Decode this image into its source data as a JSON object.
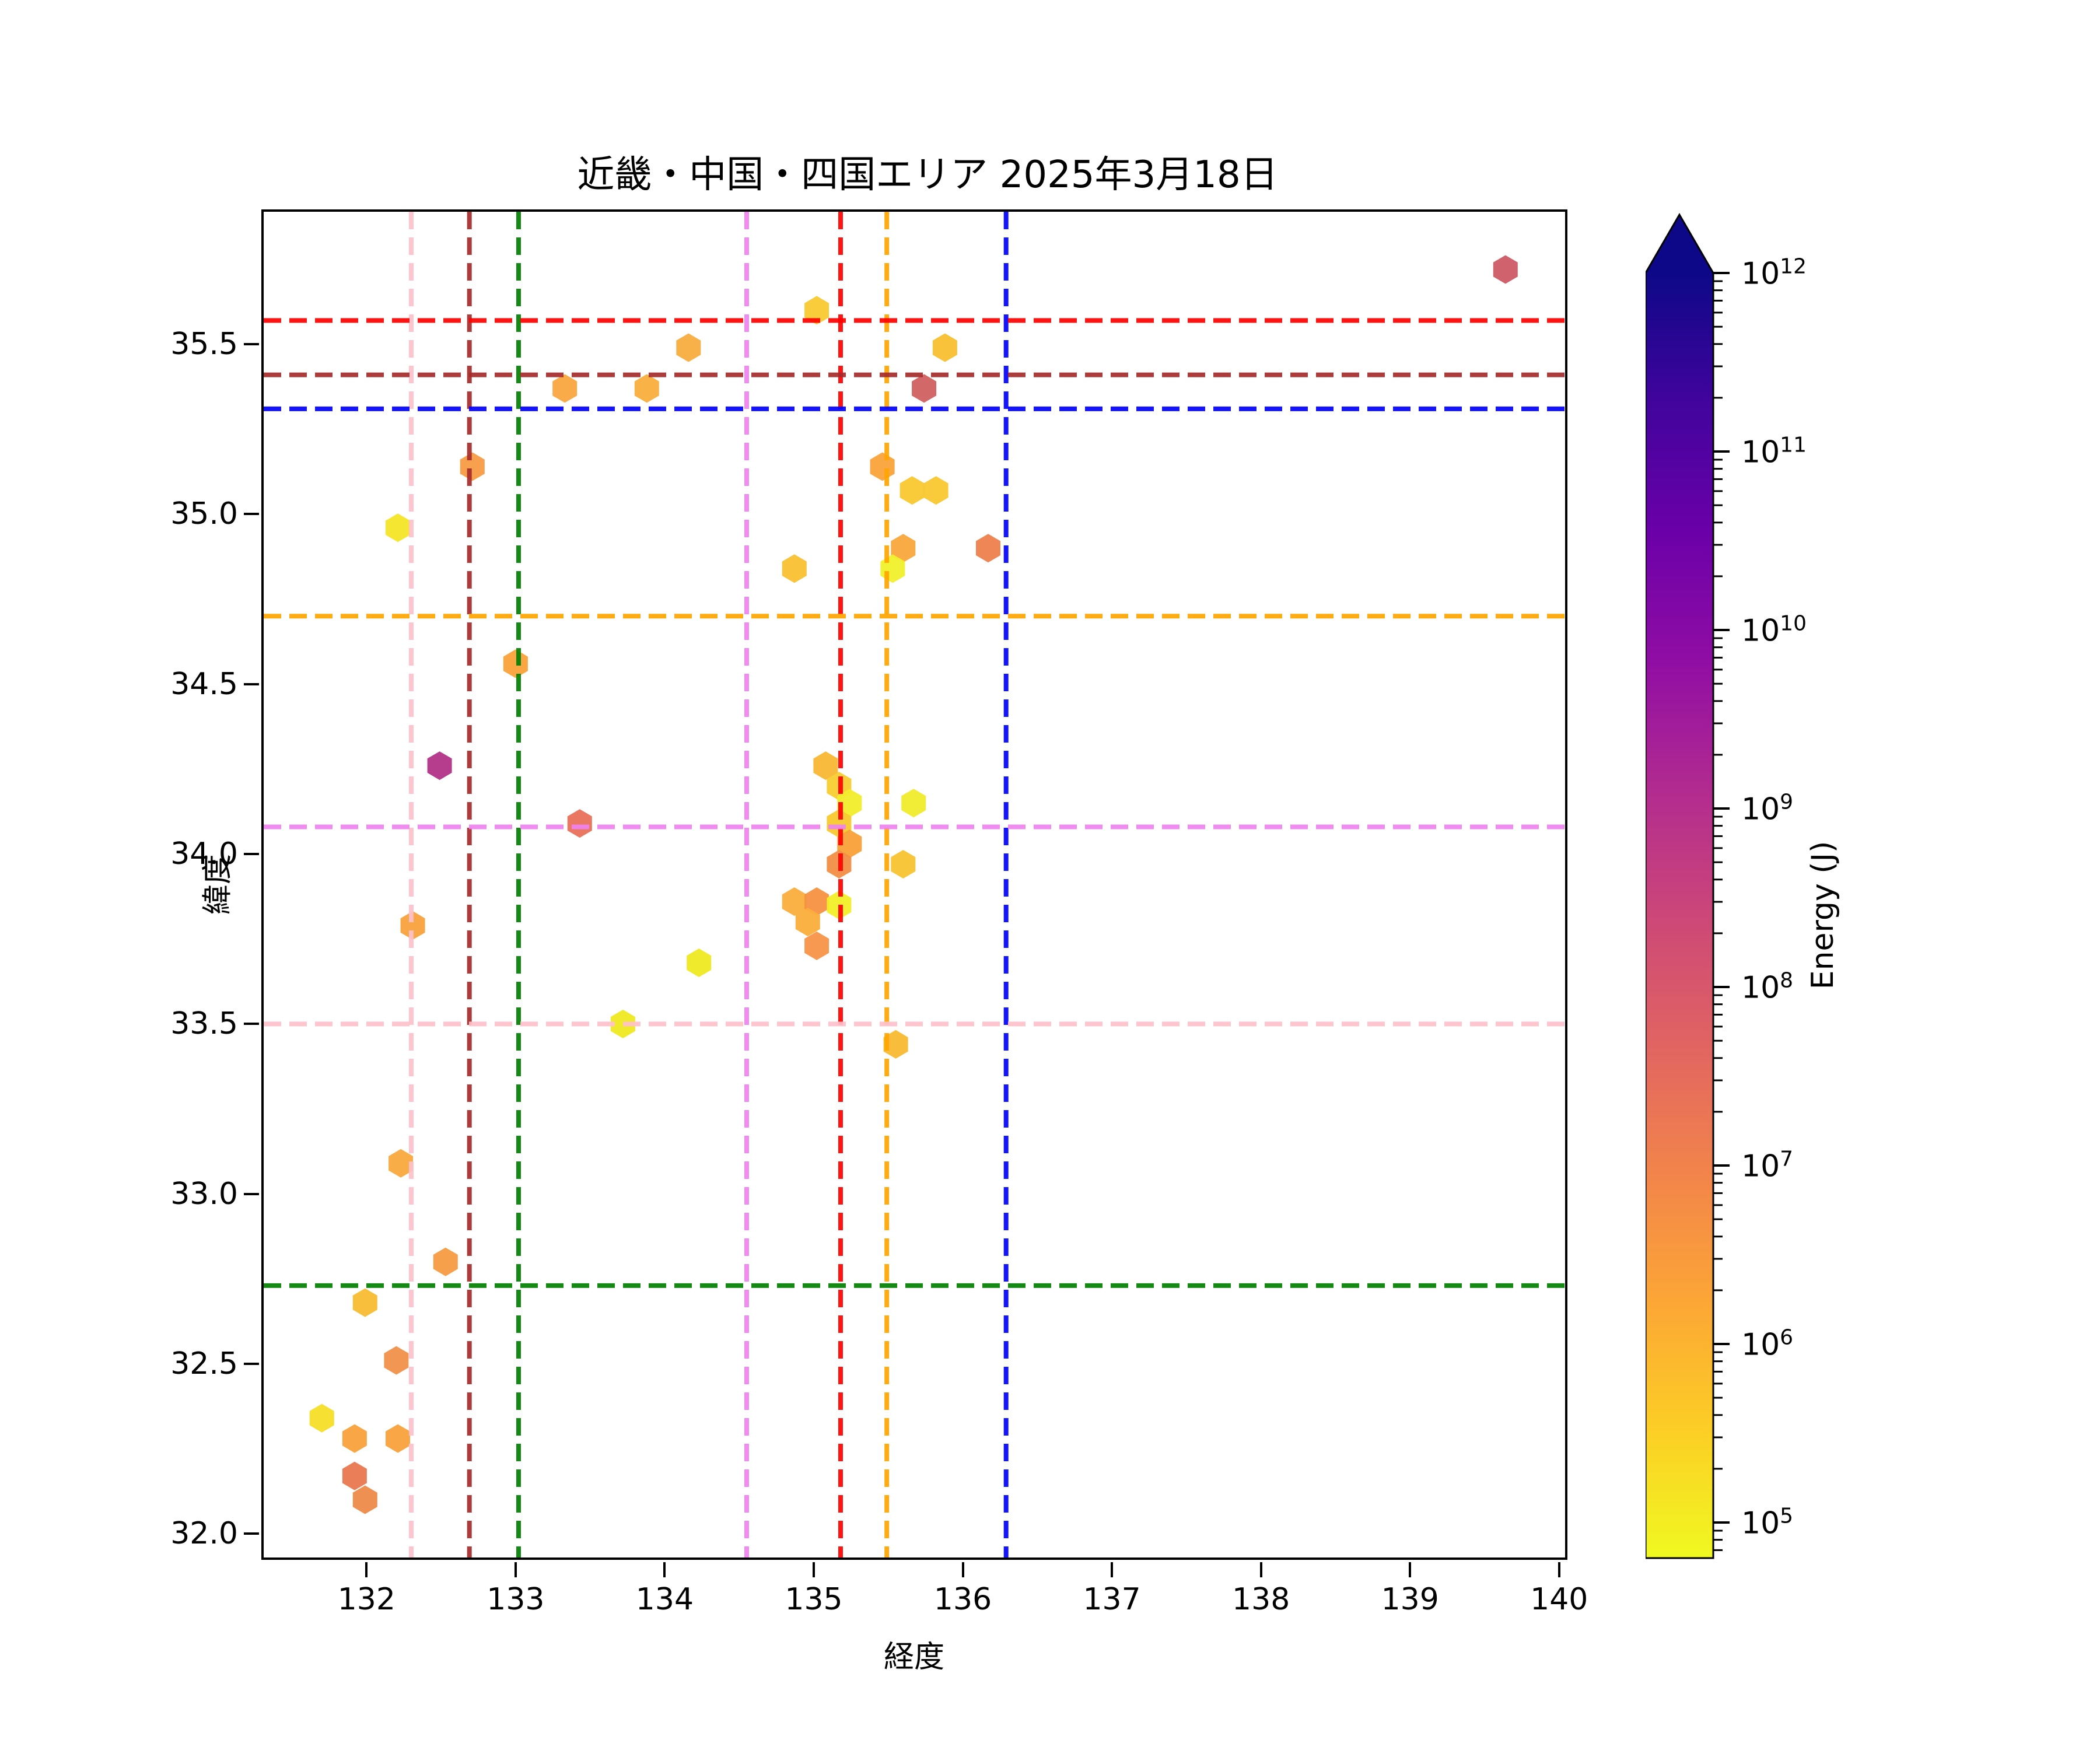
{
  "title": "近畿・中国・四国エリア 2025年3月18日",
  "chart_data": {
    "type": "scatter",
    "marker": "hexagon",
    "title": "近畿・中国・四国エリア 2025年3月18日",
    "xlabel": "経度",
    "ylabel": "緯度",
    "xlim": [
      131.31,
      140.04
    ],
    "ylim": [
      31.93,
      35.89
    ],
    "x_ticks": [
      "132",
      "133",
      "134",
      "135",
      "136",
      "137",
      "138",
      "139",
      "140"
    ],
    "y_ticks": [
      "32.0",
      "32.5",
      "33.0",
      "33.5",
      "34.0",
      "34.5",
      "35.0",
      "35.5"
    ],
    "grid": false,
    "legend": "none",
    "colorbar": {
      "label": "Energy (J)",
      "scale": "log",
      "colormap": "plasma_r",
      "extend_max_arrow": true,
      "tick_base": "10",
      "tick_exponents": [
        12,
        11,
        10,
        9,
        8,
        7,
        6,
        5
      ],
      "vmin_approx": 63000.0,
      "vmax": 1000000000000.0,
      "gradient_stops": [
        "#0d0887",
        "#41049d",
        "#6a00a8",
        "#8f0da4",
        "#b12a90",
        "#cc4778",
        "#e16462",
        "#f2844b",
        "#fca636",
        "#fcce25",
        "#f0f921"
      ]
    },
    "reference_lines": {
      "style": "dashed",
      "vertical": [
        {
          "lon": 132.3,
          "color": "#ffc0cb"
        },
        {
          "lon": 132.69,
          "color": "#a52a2a"
        },
        {
          "lon": 133.02,
          "color": "#008000"
        },
        {
          "lon": 134.55,
          "color": "#ee82ee"
        },
        {
          "lon": 135.18,
          "color": "#ff0000"
        },
        {
          "lon": 135.49,
          "color": "#ffa500"
        },
        {
          "lon": 136.29,
          "color": "#0000ff"
        }
      ],
      "horizontal": [
        {
          "lat": 35.57,
          "color": "#ff0000"
        },
        {
          "lat": 35.41,
          "color": "#a52a2a"
        },
        {
          "lat": 35.31,
          "color": "#0000ff"
        },
        {
          "lat": 34.7,
          "color": "#ffa500"
        },
        {
          "lat": 34.08,
          "color": "#ee82ee"
        },
        {
          "lat": 33.5,
          "color": "#ffc0cb"
        },
        {
          "lat": 32.73,
          "color": "#008000"
        }
      ]
    },
    "points": [
      {
        "lon": 139.64,
        "lat": 35.72,
        "color": "#ce5a66",
        "energy_log10_approx": 8.0
      },
      {
        "lon": 135.02,
        "lat": 35.6,
        "color": "#f8c930",
        "energy_log10_approx": 5.6
      },
      {
        "lon": 134.16,
        "lat": 35.49,
        "color": "#f8ac3e",
        "energy_log10_approx": 6.1
      },
      {
        "lon": 135.88,
        "lat": 35.49,
        "color": "#f8c02f",
        "energy_log10_approx": 5.7
      },
      {
        "lon": 133.33,
        "lat": 35.37,
        "color": "#f8a63e",
        "energy_log10_approx": 6.2
      },
      {
        "lon": 133.88,
        "lat": 35.37,
        "color": "#f9ae3b",
        "energy_log10_approx": 6.1
      },
      {
        "lon": 135.74,
        "lat": 35.37,
        "color": "#d0605f",
        "energy_log10_approx": 7.8
      },
      {
        "lon": 132.71,
        "lat": 35.14,
        "color": "#f79b43",
        "energy_log10_approx": 6.4
      },
      {
        "lon": 135.46,
        "lat": 35.14,
        "color": "#f9a33a",
        "energy_log10_approx": 6.3
      },
      {
        "lon": 135.66,
        "lat": 35.07,
        "color": "#f9c72e",
        "energy_log10_approx": 5.6
      },
      {
        "lon": 135.82,
        "lat": 35.07,
        "color": "#f9c72e",
        "energy_log10_approx": 5.6
      },
      {
        "lon": 132.21,
        "lat": 34.96,
        "color": "#f4e626",
        "energy_log10_approx": 5.2
      },
      {
        "lon": 135.6,
        "lat": 34.9,
        "color": "#f9a63c",
        "energy_log10_approx": 6.2
      },
      {
        "lon": 136.17,
        "lat": 34.9,
        "color": "#ed7f4d",
        "energy_log10_approx": 7.0
      },
      {
        "lon": 134.87,
        "lat": 34.84,
        "color": "#f9c030",
        "energy_log10_approx": 5.7
      },
      {
        "lon": 135.53,
        "lat": 34.84,
        "color": "#f0f02a",
        "energy_log10_approx": 5.1
      },
      {
        "lon": 133.0,
        "lat": 34.56,
        "color": "#f9a139",
        "energy_log10_approx": 6.3
      },
      {
        "lon": 132.49,
        "lat": 34.26,
        "color": "#b23288",
        "energy_log10_approx": 9.0
      },
      {
        "lon": 135.08,
        "lat": 34.26,
        "color": "#f9b733",
        "energy_log10_approx": 5.8
      },
      {
        "lon": 135.17,
        "lat": 34.2,
        "color": "#f7ce30",
        "energy_log10_approx": 5.5
      },
      {
        "lon": 135.24,
        "lat": 34.15,
        "color": "#f1ed2b",
        "energy_log10_approx": 5.1
      },
      {
        "lon": 135.67,
        "lat": 34.15,
        "color": "#f0ec2c",
        "energy_log10_approx": 5.1
      },
      {
        "lon": 133.43,
        "lat": 34.09,
        "color": "#e9705a",
        "energy_log10_approx": 7.3
      },
      {
        "lon": 135.17,
        "lat": 34.09,
        "color": "#f8c92e",
        "energy_log10_approx": 5.6
      },
      {
        "lon": 135.24,
        "lat": 34.03,
        "color": "#f9a138",
        "energy_log10_approx": 6.3
      },
      {
        "lon": 135.17,
        "lat": 33.97,
        "color": "#f18d44",
        "energy_log10_approx": 6.7
      },
      {
        "lon": 135.6,
        "lat": 33.97,
        "color": "#f8c32f",
        "energy_log10_approx": 5.7
      },
      {
        "lon": 134.87,
        "lat": 33.86,
        "color": "#faad3c",
        "energy_log10_approx": 6.1
      },
      {
        "lon": 135.02,
        "lat": 33.86,
        "color": "#f59142",
        "energy_log10_approx": 6.6
      },
      {
        "lon": 135.17,
        "lat": 33.85,
        "color": "#f2ee28",
        "energy_log10_approx": 5.1
      },
      {
        "lon": 134.96,
        "lat": 33.8,
        "color": "#faae3b",
        "energy_log10_approx": 6.1
      },
      {
        "lon": 132.31,
        "lat": 33.79,
        "color": "#f9a13c",
        "energy_log10_approx": 6.3
      },
      {
        "lon": 135.02,
        "lat": 33.73,
        "color": "#f79447",
        "energy_log10_approx": 6.5
      },
      {
        "lon": 134.23,
        "lat": 33.68,
        "color": "#efe922",
        "energy_log10_approx": 5.0
      },
      {
        "lon": 133.72,
        "lat": 33.5,
        "color": "#efe922",
        "energy_log10_approx": 5.0
      },
      {
        "lon": 135.55,
        "lat": 33.44,
        "color": "#f8b92f",
        "energy_log10_approx": 5.8
      },
      {
        "lon": 132.23,
        "lat": 33.09,
        "color": "#f8a93c",
        "energy_log10_approx": 6.1
      },
      {
        "lon": 132.53,
        "lat": 32.8,
        "color": "#f59b42",
        "energy_log10_approx": 6.4
      },
      {
        "lon": 131.99,
        "lat": 32.68,
        "color": "#f8bc32",
        "energy_log10_approx": 5.7
      },
      {
        "lon": 132.2,
        "lat": 32.51,
        "color": "#f0904a",
        "energy_log10_approx": 6.7
      },
      {
        "lon": 131.7,
        "lat": 32.34,
        "color": "#f5de26",
        "energy_log10_approx": 5.3
      },
      {
        "lon": 131.92,
        "lat": 32.28,
        "color": "#f9a23c",
        "energy_log10_approx": 6.3
      },
      {
        "lon": 132.21,
        "lat": 32.28,
        "color": "#f9a23c",
        "energy_log10_approx": 6.3
      },
      {
        "lon": 131.92,
        "lat": 32.17,
        "color": "#e8774f",
        "energy_log10_approx": 7.2
      },
      {
        "lon": 131.99,
        "lat": 32.1,
        "color": "#ee8a4a",
        "energy_log10_approx": 6.8
      }
    ]
  }
}
